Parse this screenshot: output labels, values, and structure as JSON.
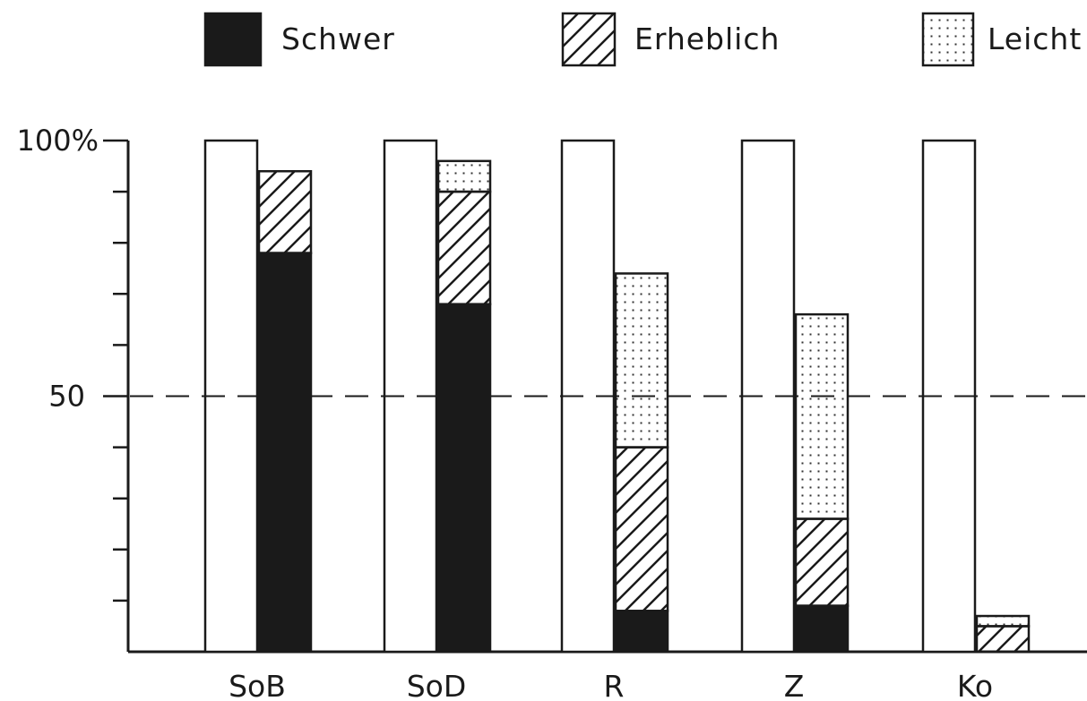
{
  "chart_data": {
    "type": "bar",
    "categories": [
      "SoB",
      "SoD",
      "R",
      "Z",
      "Ko"
    ],
    "baseline_value": 100,
    "series": [
      {
        "name": "Schwer",
        "values": [
          78,
          68,
          8,
          9,
          0
        ]
      },
      {
        "name": "Erheblich",
        "values": [
          16,
          22,
          32,
          17,
          5
        ]
      },
      {
        "name": "Leicht",
        "values": [
          0,
          6,
          34,
          40,
          2
        ]
      }
    ],
    "ylim": [
      0,
      100
    ],
    "yticks": [
      {
        "value": 100,
        "label": "100%"
      },
      {
        "value": 50,
        "label": "50"
      }
    ],
    "minor_ticks": [
      10,
      20,
      30,
      40,
      60,
      70,
      80,
      90
    ],
    "reference_line": 50,
    "title": "",
    "xlabel": "",
    "ylabel": "",
    "legend_position": "top",
    "colors": {
      "Schwer": "#1a1a1a",
      "Erheblich": "#ffffff",
      "Leicht": "#ffffff",
      "stroke": "#1a1a1a"
    },
    "patterns": {
      "Schwer": "solid",
      "Erheblich": "diagonal-hatch",
      "Leicht": "dots"
    }
  }
}
